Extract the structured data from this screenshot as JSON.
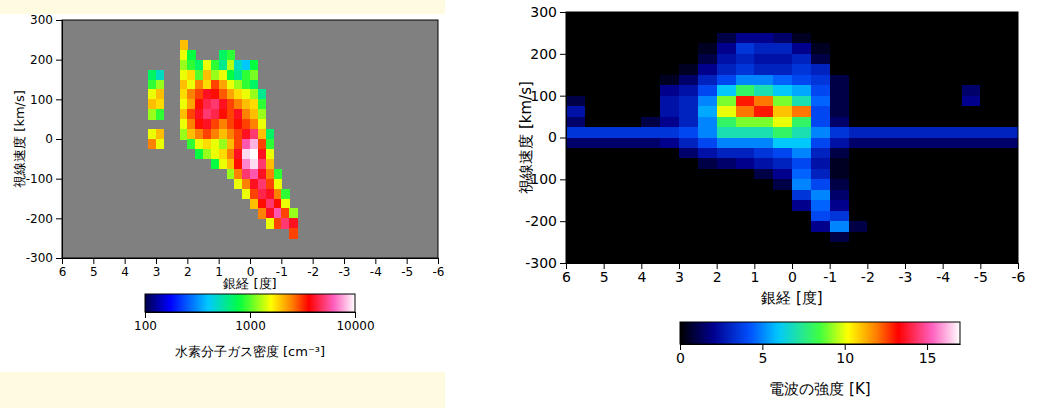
{
  "chart_data": [
    {
      "type": "heatmap",
      "x_label": "銀経 [度]",
      "y_label": "視線速度 [km/s]",
      "xlim": [
        6,
        -6
      ],
      "ylim": [
        -300,
        300
      ],
      "xticks": [
        6,
        5,
        4,
        3,
        2,
        1,
        0,
        -1,
        -2,
        -3,
        -4,
        -5,
        -6
      ],
      "yticks": [
        -300,
        -200,
        -100,
        0,
        100,
        200,
        300
      ],
      "cells": {
        "x": [
          3.125,
          2.875,
          2.625,
          2.375,
          2.125,
          1.875,
          1.625,
          1.375,
          1.125,
          0.875,
          0.625,
          0.375,
          0.125,
          -0.125,
          -0.375,
          -0.625,
          -0.875,
          -1.125,
          -1.375
        ],
        "y": [
          237.5,
          212.5,
          187.5,
          162.5,
          137.5,
          112.5,
          87.5,
          62.5,
          37.5,
          12.5,
          -12.5,
          -37.5,
          -62.5,
          -87.5,
          -112.5,
          -137.5,
          -162.5,
          -187.5,
          -212.5,
          -237.5
        ],
        "values": [
          [
            null,
            null,
            null,
            null,
            2000,
            null,
            null,
            null,
            null,
            null,
            null,
            null,
            null,
            null,
            null,
            null,
            null,
            null,
            null
          ],
          [
            null,
            null,
            null,
            null,
            1500,
            800,
            null,
            null,
            null,
            700,
            900,
            null,
            null,
            null,
            null,
            null,
            null,
            null,
            null
          ],
          [
            null,
            null,
            null,
            null,
            1200,
            900,
            700,
            1500,
            900,
            600,
            1300,
            500,
            400,
            800,
            null,
            null,
            null,
            null,
            null
          ],
          [
            700,
            500,
            null,
            null,
            1500,
            1800,
            1000,
            2000,
            1200,
            1500,
            800,
            600,
            900,
            1100,
            null,
            null,
            null,
            null,
            null
          ],
          [
            900,
            1200,
            null,
            null,
            2000,
            1500,
            2500,
            1800,
            3000,
            2200,
            1500,
            1200,
            900,
            700,
            null,
            null,
            null,
            null,
            null
          ],
          [
            1500,
            2000,
            null,
            null,
            1800,
            2500,
            3000,
            4000,
            3500,
            2800,
            2200,
            1800,
            1500,
            1200,
            600,
            null,
            null,
            null,
            null
          ],
          [
            2000,
            1800,
            null,
            null,
            1500,
            2200,
            3500,
            4500,
            5000,
            4000,
            3000,
            2500,
            2000,
            1800,
            900,
            null,
            null,
            null,
            null
          ],
          [
            1200,
            900,
            null,
            null,
            2000,
            3000,
            4000,
            5000,
            4500,
            3500,
            3000,
            4000,
            2500,
            2000,
            1200,
            null,
            null,
            null,
            null
          ],
          [
            null,
            null,
            null,
            null,
            1500,
            2500,
            3500,
            4000,
            3000,
            2500,
            3000,
            3500,
            3000,
            2500,
            1500,
            null,
            null,
            null,
            null
          ],
          [
            1500,
            2000,
            null,
            null,
            1200,
            2000,
            2500,
            3000,
            2500,
            2000,
            2500,
            3000,
            4000,
            5000,
            2000,
            700,
            null,
            null,
            null
          ],
          [
            2500,
            1500,
            null,
            null,
            null,
            900,
            1500,
            1800,
            1500,
            1200,
            2000,
            3000,
            6000,
            8000,
            3000,
            900,
            null,
            null,
            null
          ],
          [
            null,
            null,
            null,
            null,
            null,
            null,
            800,
            1200,
            1500,
            1800,
            2500,
            4000,
            9000,
            10000,
            4000,
            1500,
            null,
            null,
            null
          ],
          [
            null,
            null,
            null,
            null,
            null,
            null,
            null,
            null,
            800,
            1500,
            2000,
            3500,
            7000,
            9000,
            5000,
            2000,
            null,
            null,
            null
          ],
          [
            null,
            null,
            null,
            null,
            null,
            null,
            null,
            null,
            null,
            null,
            1200,
            2500,
            5000,
            6000,
            4000,
            2500,
            900,
            null,
            null
          ],
          [
            null,
            null,
            null,
            null,
            null,
            null,
            null,
            null,
            null,
            null,
            null,
            1500,
            2500,
            4000,
            5000,
            3000,
            1500,
            null,
            null
          ],
          [
            null,
            null,
            null,
            null,
            null,
            null,
            null,
            null,
            null,
            null,
            null,
            null,
            1500,
            3000,
            4500,
            4000,
            2500,
            900,
            null
          ],
          [
            null,
            null,
            null,
            null,
            null,
            null,
            null,
            null,
            null,
            null,
            null,
            null,
            null,
            2000,
            3500,
            5000,
            3500,
            1500,
            null
          ],
          [
            null,
            null,
            null,
            null,
            null,
            null,
            null,
            null,
            null,
            null,
            null,
            null,
            null,
            null,
            2500,
            4000,
            6000,
            3000,
            1200
          ],
          [
            null,
            null,
            null,
            null,
            null,
            null,
            null,
            null,
            null,
            null,
            null,
            null,
            null,
            null,
            null,
            1500,
            3000,
            5000,
            4000
          ],
          [
            null,
            null,
            null,
            null,
            null,
            null,
            null,
            null,
            null,
            null,
            null,
            null,
            null,
            null,
            null,
            null,
            null,
            null,
            3000
          ]
        ]
      },
      "colorbar": {
        "label": "水素分子ガス密度 [cm⁻³]",
        "range": [
          100,
          10000
        ],
        "ticks": [
          100,
          1000,
          10000
        ],
        "log": true
      }
    },
    {
      "type": "heatmap",
      "x_label": "銀経 [度]",
      "y_label": "視線速度 [km/s]",
      "xlim": [
        6,
        -6
      ],
      "ylim": [
        -300,
        300
      ],
      "xticks": [
        6,
        5,
        4,
        3,
        2,
        1,
        0,
        -1,
        -2,
        -3,
        -4,
        -5,
        -6
      ],
      "yticks": [
        -300,
        -200,
        -100,
        0,
        100,
        200,
        300
      ],
      "cells": {
        "x": [
          5.75,
          5.25,
          4.75,
          4.25,
          3.75,
          3.25,
          2.75,
          2.25,
          1.75,
          1.25,
          0.75,
          0.25,
          -0.25,
          -0.75,
          -1.25,
          -1.75,
          -2.25,
          -2.75,
          -3.25,
          -3.75,
          -4.25,
          -4.75,
          -5.25,
          -5.75
        ],
        "y": [
          287.5,
          262.5,
          237.5,
          212.5,
          187.5,
          162.5,
          137.5,
          112.5,
          87.5,
          62.5,
          37.5,
          12.5,
          -12.5,
          -37.5,
          -62.5,
          -87.5,
          -112.5,
          -137.5,
          -162.5,
          -187.5,
          -212.5,
          -237.5,
          -262.5,
          -287.5
        ],
        "values": [
          [
            0,
            0,
            0,
            0,
            0,
            0,
            0,
            0,
            0,
            0,
            0,
            0,
            0,
            0,
            0,
            0,
            0,
            0,
            0,
            0,
            0,
            0,
            0,
            0
          ],
          [
            0,
            0,
            0,
            0,
            0,
            0,
            0,
            0,
            0,
            0,
            0,
            0,
            0,
            0,
            0,
            0,
            0,
            0,
            0,
            0,
            0,
            0,
            0,
            0
          ],
          [
            0,
            0,
            0,
            0,
            0,
            0,
            0,
            0,
            1,
            2,
            2,
            1.5,
            0.5,
            0,
            0,
            0,
            0,
            0,
            0,
            0,
            0,
            0,
            0,
            0
          ],
          [
            0,
            0,
            0,
            0,
            0,
            0,
            0,
            0.5,
            2,
            3.5,
            3,
            3,
            2,
            0.5,
            0,
            0,
            0,
            0,
            0,
            0,
            0,
            0,
            0,
            0
          ],
          [
            0,
            0,
            0,
            0,
            0,
            0,
            0,
            1,
            2.5,
            3,
            2.5,
            2.5,
            3,
            1,
            0,
            0,
            0,
            0,
            0,
            0,
            0,
            0,
            0,
            0
          ],
          [
            0,
            0,
            0,
            0,
            0,
            0,
            0.5,
            2,
            3,
            3.5,
            3,
            3,
            3.5,
            3,
            0,
            0,
            0,
            0,
            0,
            0,
            0,
            0,
            0,
            0
          ],
          [
            0,
            0,
            0,
            0,
            0,
            0.5,
            1.5,
            3,
            4,
            5,
            5,
            4.5,
            4,
            3.5,
            1,
            0,
            0,
            0,
            0,
            0,
            0,
            0,
            0,
            0
          ],
          [
            0,
            0,
            0,
            0,
            0,
            2,
            2.5,
            4,
            6,
            8,
            7,
            6,
            5.5,
            4,
            1,
            0,
            0,
            0,
            0,
            0,
            0,
            1.5,
            0,
            0
          ],
          [
            1,
            0,
            0,
            0,
            0,
            2.5,
            3,
            5,
            9,
            13,
            12,
            9,
            7,
            4.5,
            1,
            0,
            0,
            0,
            0,
            0,
            0,
            2,
            0,
            0
          ],
          [
            2.5,
            0,
            0,
            0,
            0,
            2.5,
            3,
            5.5,
            10,
            12,
            13,
            11,
            12,
            4,
            1,
            0,
            0,
            0,
            0,
            0,
            0,
            0,
            0,
            0
          ],
          [
            1.5,
            0,
            0,
            0,
            1,
            2,
            3,
            5,
            8,
            9,
            9,
            10,
            8,
            4,
            1.5,
            0,
            0,
            0,
            0,
            0,
            0,
            0,
            0,
            0
          ],
          [
            3.5,
            3.5,
            3.5,
            3.5,
            3.5,
            3.5,
            4,
            5,
            7,
            7,
            7,
            8,
            7,
            5,
            3.5,
            3,
            3,
            3,
            3,
            3,
            3,
            3,
            3,
            3
          ],
          [
            1.5,
            1.5,
            1.5,
            1.5,
            1.5,
            2,
            3,
            4,
            5,
            5,
            5,
            6,
            6,
            4,
            2.5,
            1.5,
            1.5,
            1.5,
            1.5,
            1.5,
            1.5,
            1.5,
            1.5,
            1.5
          ],
          [
            0,
            0,
            0,
            0,
            0,
            0,
            1.5,
            2.5,
            3,
            3,
            3.5,
            4,
            5,
            3,
            1,
            0,
            0,
            0,
            0,
            0,
            0,
            0,
            0,
            0
          ],
          [
            0,
            0,
            0,
            0,
            0,
            0,
            0,
            1,
            1.5,
            2,
            2.5,
            3,
            4,
            2.5,
            0.5,
            0,
            0,
            0,
            0,
            0,
            0,
            0,
            0,
            0
          ],
          [
            0,
            0,
            0,
            0,
            0,
            0,
            0,
            0,
            0,
            0,
            1,
            2,
            4.5,
            3,
            0.5,
            0,
            0,
            0,
            0,
            0,
            0,
            0,
            0,
            0
          ],
          [
            0,
            0,
            0,
            0,
            0,
            0,
            0,
            0,
            0,
            0,
            0,
            1,
            5,
            4,
            1,
            0,
            0,
            0,
            0,
            0,
            0,
            0,
            0,
            0
          ],
          [
            0,
            0,
            0,
            0,
            0,
            0,
            0,
            0,
            0,
            0,
            0,
            0,
            3.5,
            5,
            1.5,
            0,
            0,
            0,
            0,
            0,
            0,
            0,
            0,
            0
          ],
          [
            0,
            0,
            0,
            0,
            0,
            0,
            0,
            0,
            0,
            0,
            0,
            0,
            2,
            4.5,
            2,
            0,
            0,
            0,
            0,
            0,
            0,
            0,
            0,
            0
          ],
          [
            0,
            0,
            0,
            0,
            0,
            0,
            0,
            0,
            0,
            0,
            0,
            0,
            0,
            4,
            3.5,
            0,
            0,
            0,
            0,
            0,
            0,
            0,
            0,
            0
          ],
          [
            0,
            0,
            0,
            0,
            0,
            0,
            0,
            0,
            0,
            0,
            0,
            0,
            0,
            2,
            5,
            1,
            0,
            0,
            0,
            0,
            0,
            0,
            0,
            0
          ],
          [
            0,
            0,
            0,
            0,
            0,
            0,
            0,
            0,
            0,
            0,
            0,
            0,
            0,
            0,
            1,
            0,
            0,
            0,
            0,
            0,
            0,
            0,
            0,
            0
          ],
          [
            0,
            0,
            0,
            0,
            0,
            0,
            0,
            0,
            0,
            0,
            0,
            0,
            0,
            0,
            0,
            0,
            0,
            0,
            0,
            0,
            0,
            0,
            0,
            0
          ],
          [
            0,
            0,
            0,
            0,
            0,
            0,
            0,
            0,
            0,
            0,
            0,
            0,
            0,
            0,
            0,
            0,
            0,
            0,
            0,
            0,
            0,
            0,
            0,
            0
          ]
        ]
      },
      "colorbar": {
        "label": "電波の強度 [K]",
        "range": [
          0,
          17
        ],
        "ticks": [
          0,
          5,
          10,
          15
        ],
        "log": false
      }
    }
  ]
}
